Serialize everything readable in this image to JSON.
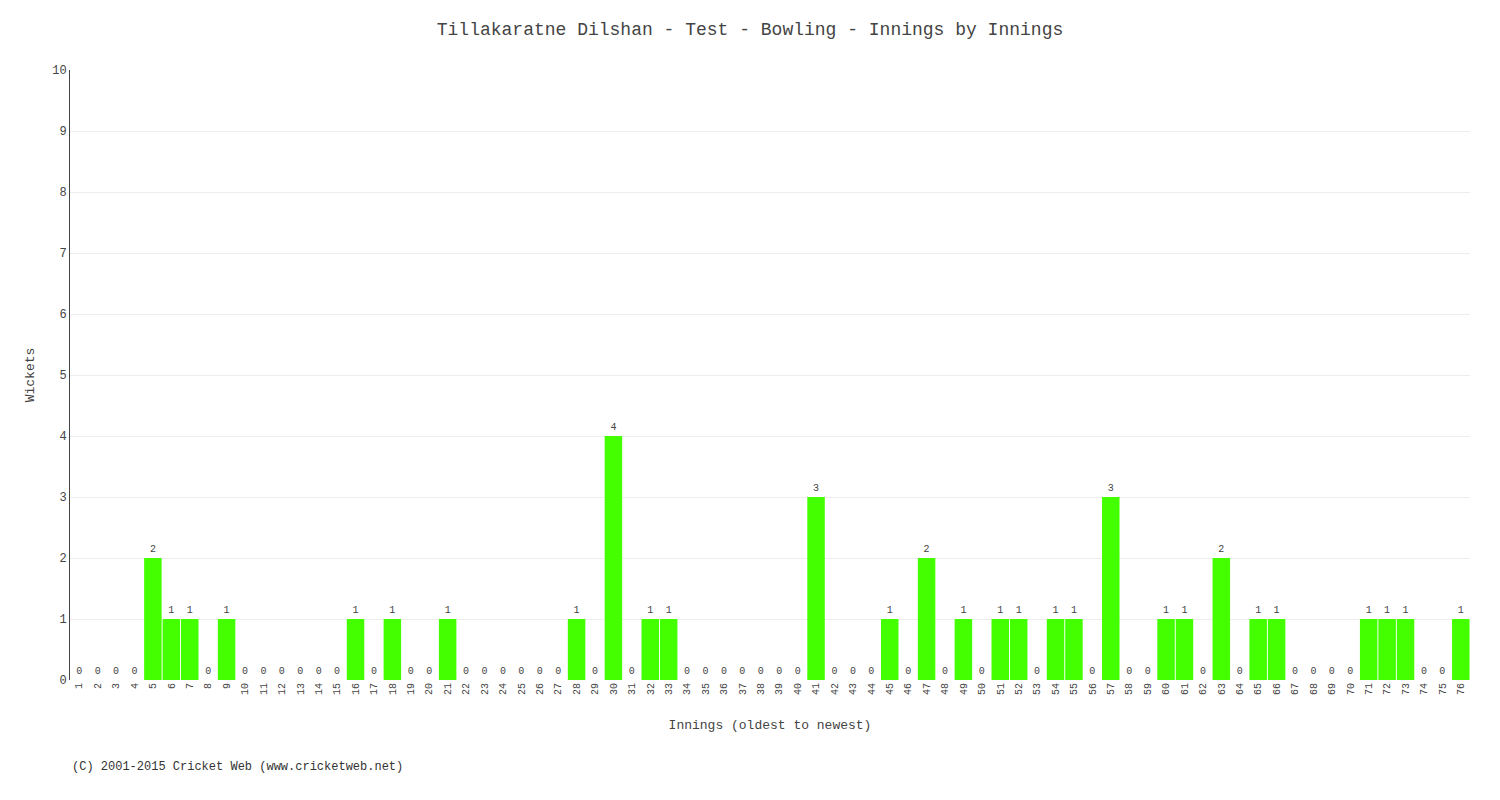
{
  "chart_data": {
    "type": "bar",
    "title": "Tillakaratne Dilshan - Test - Bowling - Innings by Innings",
    "x_label": "Innings (oldest to newest)",
    "y_label": "Wickets",
    "annotations": [
      "(C) 2001-2015 Cricket Web (www.cricketweb.net)"
    ],
    "categories": [
      "1",
      "2",
      "3",
      "4",
      "5",
      "6",
      "7",
      "8",
      "9",
      "10",
      "11",
      "12",
      "13",
      "14",
      "15",
      "16",
      "17",
      "18",
      "19",
      "20",
      "21",
      "22",
      "23",
      "24",
      "25",
      "26",
      "27",
      "28",
      "29",
      "30",
      "31",
      "32",
      "33",
      "34",
      "35",
      "36",
      "37",
      "38",
      "39",
      "40",
      "41",
      "42",
      "43",
      "44",
      "45",
      "46",
      "47",
      "48",
      "49",
      "50",
      "51",
      "52",
      "53",
      "54",
      "55",
      "56",
      "57",
      "58",
      "59",
      "60",
      "61",
      "62",
      "63",
      "64",
      "65",
      "66",
      "67",
      "68",
      "69",
      "70",
      "71",
      "72",
      "73",
      "74",
      "75",
      "76"
    ],
    "values": [
      0,
      0,
      0,
      0,
      2,
      1,
      1,
      0,
      1,
      0,
      0,
      0,
      0,
      0,
      0,
      1,
      0,
      1,
      0,
      0,
      1,
      0,
      0,
      0,
      0,
      0,
      0,
      1,
      0,
      4,
      0,
      1,
      1,
      0,
      0,
      0,
      0,
      0,
      0,
      0,
      3,
      0,
      0,
      0,
      1,
      0,
      2,
      0,
      1,
      0,
      1,
      1,
      0,
      1,
      1,
      0,
      3,
      0,
      0,
      1,
      1,
      0,
      2,
      0,
      1,
      1,
      0,
      0,
      0,
      0,
      1,
      1,
      1,
      0,
      0,
      1
    ],
    "color": "#44FF00",
    "ylim": [
      0,
      10
    ],
    "yticks": [
      0,
      1,
      2,
      3,
      4,
      5,
      6,
      7,
      8,
      9,
      10
    ],
    "grid": true,
    "data_labels": true
  }
}
